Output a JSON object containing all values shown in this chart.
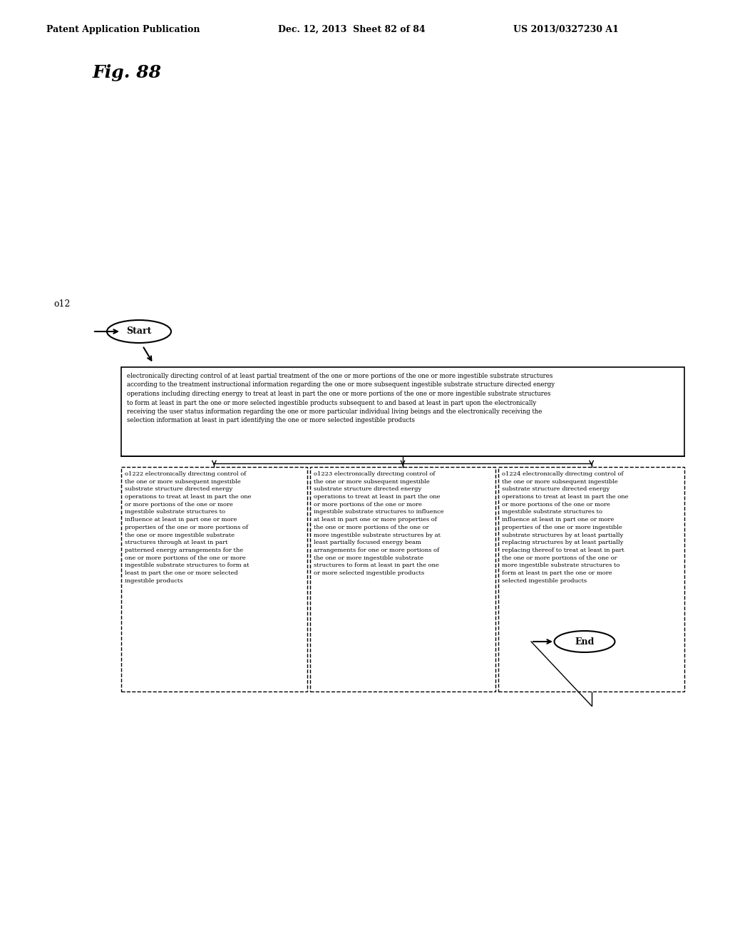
{
  "header_left": "Patent Application Publication",
  "header_mid": "Dec. 12, 2013  Sheet 82 of 84",
  "header_right": "US 2013/0327230 A1",
  "fig_label": "Fig. 88",
  "node_label": "o12",
  "start_label": "Start",
  "end_label": "End",
  "top_box_text": "electronically directing control of at least partial treatment of the one or more portions of the one or more ingestible substrate structures\naccording to the treatment instructional information regarding the one or more subsequent ingestible substrate structure directed energy\noperations including directing energy to treat at least in part the one or more portions of the one or more ingestible substrate structures\nto form at least in part the one or more selected ingestible products subsequent to and based at least in part upon the electronically\nreceiving the user status information regarding the one or more particular individual living beings and the electronically receiving the\nselection information at least in part identifying the one or more selected ingestible products",
  "box1_label": "o1222",
  "box1_text": "o1222 electronically directing control of\nthe one or more subsequent ingestible\nsubstrate structure directed energy\noperations to treat at least in part the one\nor more portions of the one or more\ningestible substrate structures to\ninfluence at least in part one or more\nproperties of the one or more portions of\nthe one or more ingestible substrate\nstructures through at least in part\npatterned energy arrangements for the\none or more portions of the one or more\ningestible substrate structures to form at\nleast in part the one or more selected\ningestible products",
  "box2_label": "o1223",
  "box2_text": "o1223 electronically directing control of\nthe one or more subsequent ingestible\nsubstrate structure directed energy\noperations to treat at least in part the one\nor more portions of the one or more\ningestible substrate structures to influence\nat least in part one or more properties of\nthe one or more portions of the one or\nmore ingestible substrate structures by at\nleast partially focused energy beam\narrangements for one or more portions of\nthe one or more ingestible substrate\nstructures to form at least in part the one\nor more selected ingestible products",
  "box3_label": "o1224",
  "box3_text": "o1224 electronically directing control of\nthe one or more subsequent ingestible\nsubstrate structure directed energy\noperations to treat at least in part the one\nor more portions of the one or more\ningestible substrate structures to\ninfluence at least in part one or more\nproperties of the one or more ingestible\nsubstrate structures by at least partially replacing\nstructures by at least partially replacing\nthereof to treat at least in part the one or\nmore portions of the one or more\ningestible substrate structures to form at\nleast in part the one or more selected\ningestible products",
  "background_color": "#ffffff",
  "text_color": "#000000",
  "box_edge_color": "#000000",
  "dashed_color": "#000000"
}
